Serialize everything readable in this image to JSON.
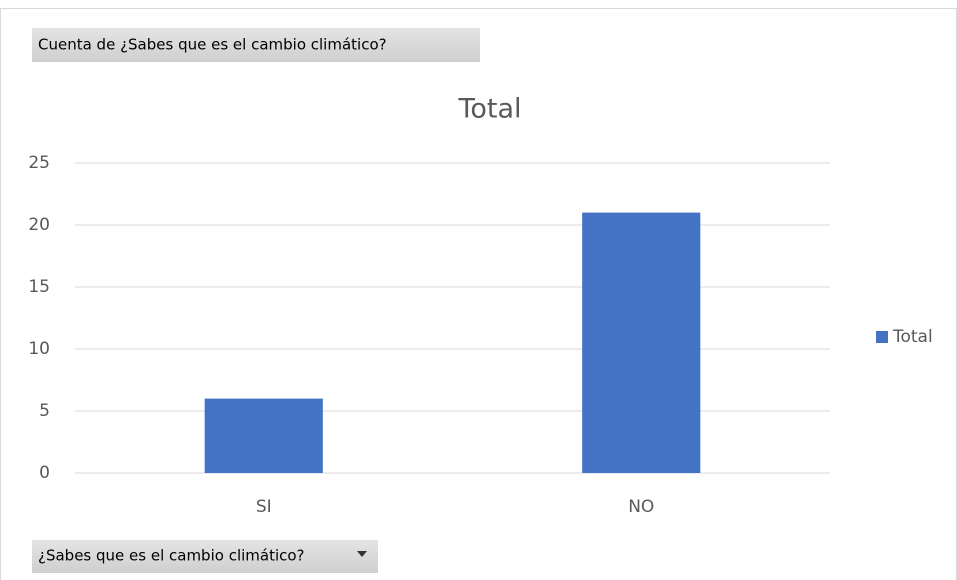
{
  "chart_data": {
    "type": "bar",
    "title": "Total",
    "value_field_button": "Cuenta de ¿Sabes que es el cambio climático?",
    "axis_field_button": "¿Sabes que es el cambio climático?",
    "categories": [
      "SI",
      "NO"
    ],
    "series": [
      {
        "name": "Total",
        "color": "#4472c4",
        "values": [
          6,
          21
        ]
      }
    ],
    "ylim": [
      0,
      25
    ],
    "yticks": [
      0,
      5,
      10,
      15,
      20,
      25
    ],
    "grid": true,
    "legend": "right"
  }
}
